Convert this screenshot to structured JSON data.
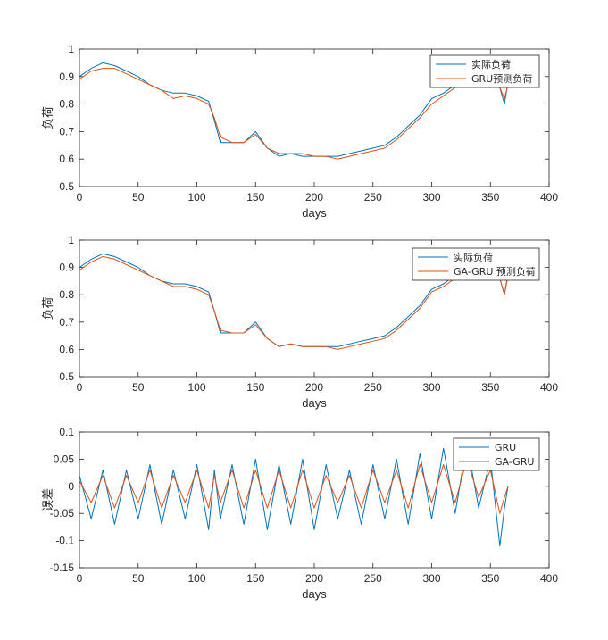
{
  "colors": {
    "actual": "#0072BD",
    "predicted": "#D95319",
    "axis": "#262626"
  },
  "chart_data": [
    {
      "type": "line",
      "xlabel": "days",
      "ylabel": "负荷",
      "xlim": [
        0,
        400
      ],
      "ylim": [
        0.5,
        1
      ],
      "xticks": [
        "0",
        "50",
        "100",
        "150",
        "200",
        "250",
        "300",
        "350",
        "400"
      ],
      "yticks": [
        "0.5",
        "0.6",
        "0.7",
        "0.8",
        "0.9",
        "1"
      ],
      "legend_position": "top-right",
      "x": [
        0,
        10,
        20,
        30,
        40,
        50,
        60,
        70,
        80,
        90,
        100,
        110,
        115,
        120,
        130,
        140,
        150,
        160,
        170,
        180,
        190,
        200,
        210,
        220,
        230,
        240,
        250,
        260,
        270,
        280,
        290,
        300,
        310,
        320,
        330,
        340,
        350,
        358,
        362,
        365
      ],
      "series": [
        {
          "name": "实际负荷",
          "values": [
            0.9,
            0.93,
            0.95,
            0.94,
            0.92,
            0.9,
            0.87,
            0.85,
            0.84,
            0.84,
            0.83,
            0.81,
            0.74,
            0.66,
            0.66,
            0.66,
            0.7,
            0.64,
            0.61,
            0.62,
            0.61,
            0.61,
            0.61,
            0.61,
            0.62,
            0.63,
            0.64,
            0.65,
            0.68,
            0.72,
            0.76,
            0.82,
            0.84,
            0.87,
            0.89,
            0.9,
            0.93,
            0.86,
            0.8,
            0.88
          ]
        },
        {
          "name": "GRU预测负荷",
          "values": [
            0.89,
            0.92,
            0.93,
            0.93,
            0.91,
            0.89,
            0.87,
            0.85,
            0.82,
            0.83,
            0.82,
            0.8,
            0.75,
            0.68,
            0.66,
            0.66,
            0.69,
            0.64,
            0.62,
            0.62,
            0.62,
            0.61,
            0.61,
            0.6,
            0.61,
            0.62,
            0.63,
            0.64,
            0.67,
            0.71,
            0.75,
            0.8,
            0.83,
            0.86,
            0.88,
            0.9,
            0.91,
            0.86,
            0.82,
            0.87
          ]
        }
      ]
    },
    {
      "type": "line",
      "xlabel": "days",
      "ylabel": "负荷",
      "xlim": [
        0,
        400
      ],
      "ylim": [
        0.5,
        1
      ],
      "xticks": [
        "0",
        "50",
        "100",
        "150",
        "200",
        "250",
        "300",
        "350",
        "400"
      ],
      "yticks": [
        "0.5",
        "0.6",
        "0.7",
        "0.8",
        "0.9",
        "1"
      ],
      "legend_position": "top-right",
      "x": [
        0,
        10,
        20,
        30,
        40,
        50,
        60,
        70,
        80,
        90,
        100,
        110,
        115,
        120,
        130,
        140,
        150,
        160,
        170,
        180,
        190,
        200,
        210,
        220,
        230,
        240,
        250,
        260,
        270,
        280,
        290,
        300,
        310,
        320,
        330,
        340,
        350,
        358,
        362,
        365
      ],
      "series": [
        {
          "name": "实际负荷",
          "values": [
            0.9,
            0.93,
            0.95,
            0.94,
            0.92,
            0.9,
            0.87,
            0.85,
            0.84,
            0.84,
            0.83,
            0.81,
            0.74,
            0.66,
            0.66,
            0.66,
            0.7,
            0.64,
            0.61,
            0.62,
            0.61,
            0.61,
            0.61,
            0.61,
            0.62,
            0.63,
            0.64,
            0.65,
            0.68,
            0.72,
            0.76,
            0.82,
            0.84,
            0.87,
            0.89,
            0.9,
            0.93,
            0.86,
            0.8,
            0.88
          ]
        },
        {
          "name": "GA-GRU 预测负荷",
          "values": [
            0.89,
            0.92,
            0.94,
            0.93,
            0.91,
            0.89,
            0.87,
            0.85,
            0.83,
            0.83,
            0.82,
            0.8,
            0.74,
            0.67,
            0.66,
            0.66,
            0.69,
            0.64,
            0.61,
            0.62,
            0.61,
            0.61,
            0.61,
            0.6,
            0.61,
            0.62,
            0.63,
            0.64,
            0.67,
            0.71,
            0.75,
            0.81,
            0.83,
            0.86,
            0.88,
            0.9,
            0.92,
            0.86,
            0.8,
            0.87
          ]
        }
      ]
    },
    {
      "type": "line",
      "xlabel": "days",
      "ylabel": "误差",
      "xlim": [
        0,
        400
      ],
      "ylim": [
        -0.15,
        0.1
      ],
      "xticks": [
        "0",
        "50",
        "100",
        "150",
        "200",
        "250",
        "300",
        "350",
        "400"
      ],
      "yticks": [
        "-0.15",
        "-0.1",
        "-0.05",
        "0",
        "0.05",
        "0.1"
      ],
      "legend_position": "top-right",
      "x": [
        0,
        10,
        20,
        30,
        40,
        50,
        60,
        70,
        80,
        90,
        100,
        110,
        115,
        120,
        130,
        140,
        150,
        160,
        170,
        180,
        190,
        200,
        210,
        220,
        230,
        240,
        250,
        260,
        270,
        280,
        290,
        300,
        310,
        320,
        330,
        340,
        350,
        358,
        362,
        365
      ],
      "series": [
        {
          "name": "GRU",
          "values": [
            0.02,
            -0.06,
            0.03,
            -0.07,
            0.03,
            -0.06,
            0.04,
            -0.07,
            0.03,
            -0.06,
            0.04,
            -0.08,
            0.03,
            -0.06,
            0.04,
            -0.07,
            0.05,
            -0.08,
            0.04,
            -0.07,
            0.05,
            -0.08,
            0.04,
            -0.06,
            0.03,
            -0.07,
            0.04,
            -0.06,
            0.05,
            -0.07,
            0.06,
            -0.06,
            0.07,
            -0.05,
            0.08,
            -0.04,
            0.05,
            -0.11,
            -0.04,
            0.0
          ]
        },
        {
          "name": "GA-GRU",
          "values": [
            0.01,
            -0.03,
            0.02,
            -0.04,
            0.02,
            -0.03,
            0.03,
            -0.04,
            0.02,
            -0.03,
            0.03,
            -0.04,
            0.02,
            -0.03,
            0.03,
            -0.04,
            0.03,
            -0.04,
            0.03,
            -0.04,
            0.03,
            -0.04,
            0.02,
            -0.03,
            0.02,
            -0.04,
            0.03,
            -0.03,
            0.03,
            -0.04,
            0.04,
            -0.03,
            0.04,
            -0.03,
            0.05,
            -0.02,
            0.03,
            -0.05,
            -0.02,
            0.0
          ]
        }
      ]
    }
  ]
}
